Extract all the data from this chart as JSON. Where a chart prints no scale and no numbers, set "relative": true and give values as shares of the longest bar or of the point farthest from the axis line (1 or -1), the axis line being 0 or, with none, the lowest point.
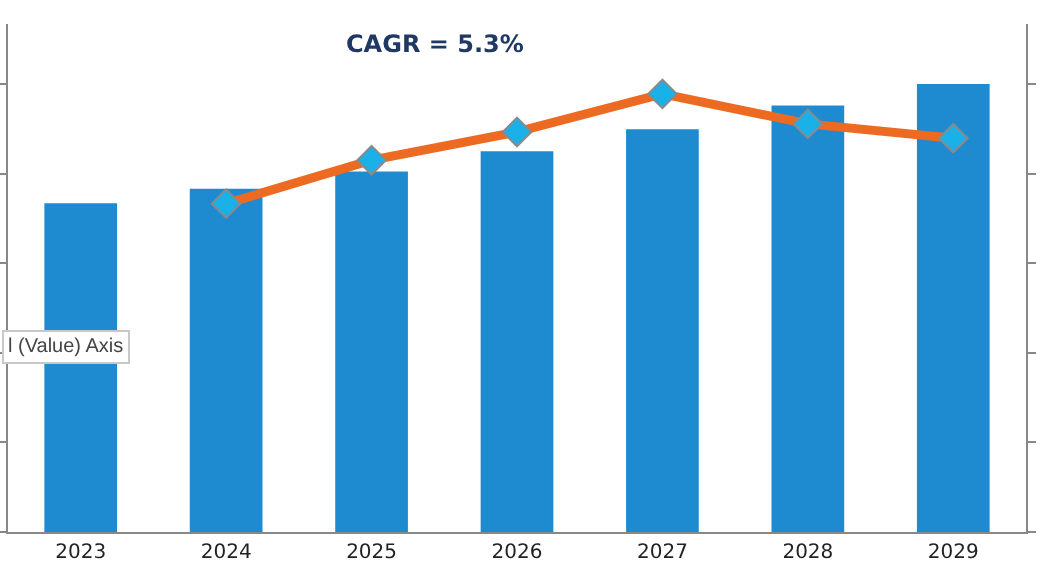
{
  "chart_data": {
    "type": "bar",
    "title": "CAGR = 5.3%",
    "relative": true,
    "categories": [
      "2023",
      "2024",
      "2025",
      "2026",
      "2027",
      "2028",
      "2029"
    ],
    "series": [
      {
        "color": "#1e8bd1",
        "values": [
          0.734,
          0.766,
          0.805,
          0.85,
          0.899,
          0.952,
          1
        ]
      },
      {
        "type": "line",
        "color": "#ed6a22",
        "values": [
          null,
          0.733,
          0.83,
          0.893,
          0.978,
          0.911,
          0.879
        ],
        "marker": "diamond"
      }
    ],
    "annotations": [
      "l (Value) Axis"
    ]
  }
}
